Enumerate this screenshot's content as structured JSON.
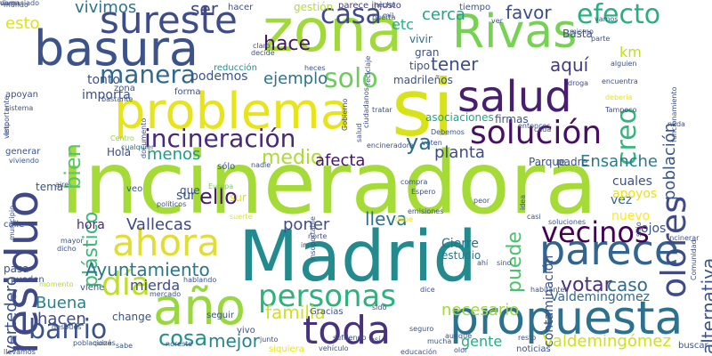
{
  "words": [
    {
      "text": "incineradora",
      "color": "#a5db36"
    },
    {
      "text": "Madrid",
      "color": "#238a8d"
    },
    {
      "text": "si",
      "color": "#d7e219"
    },
    {
      "text": "zona",
      "color": "#a0da39"
    },
    {
      "text": "propuesta",
      "color": "#2c718e"
    },
    {
      "text": "residuo",
      "color": "#3f4889"
    },
    {
      "text": "problema",
      "color": "#e7e419"
    },
    {
      "text": "salud",
      "color": "#481f70"
    },
    {
      "text": "basura",
      "color": "#3b528b"
    },
    {
      "text": "Rivas",
      "color": "#77d153"
    },
    {
      "text": "año",
      "color": "#98d83e"
    },
    {
      "text": "parece",
      "color": "#32648e"
    },
    {
      "text": "toda",
      "color": "#46327e"
    },
    {
      "text": "olores",
      "color": "#3e4a89"
    },
    {
      "text": "ahora",
      "color": "#e1dd37"
    },
    {
      "text": "sureste",
      "color": "#3e4c8a"
    },
    {
      "text": "solución",
      "color": "#471063"
    },
    {
      "text": "día",
      "color": "#bddf26"
    },
    {
      "text": "personas",
      "color": "#2db27d"
    },
    {
      "text": "vecinos",
      "color": "#440154"
    },
    {
      "text": "barrio",
      "color": "#3b528b"
    },
    {
      "text": "incineración",
      "color": "#482878"
    },
    {
      "text": "efecto",
      "color": "#29af7f"
    },
    {
      "text": "casa",
      "color": "#3e4989"
    },
    {
      "text": "manera",
      "color": "#31688e"
    },
    {
      "text": "solo",
      "color": "#6ccd5a"
    },
    {
      "text": "creo",
      "color": "#31b57b"
    },
    {
      "text": "plástico",
      "color": "#3aba76"
    },
    {
      "text": "bien",
      "color": "#56c667"
    },
    {
      "text": "Ayuntamiento",
      "color": "#2a768e"
    },
    {
      "text": "ya",
      "color": "#2d708e"
    },
    {
      "text": "medio",
      "color": "#addc30"
    },
    {
      "text": "cosa",
      "color": "#21918c"
    },
    {
      "text": "puede",
      "color": "#4ac16d"
    },
    {
      "text": "Valdemingómez",
      "color": "#cde11d"
    },
    {
      "text": "tener",
      "color": "#3d4e8a"
    },
    {
      "text": "planta",
      "color": "#3e4a89"
    },
    {
      "text": "Ensanche",
      "color": "#297a8e"
    },
    {
      "text": "votar",
      "color": "#472f7d"
    },
    {
      "text": "caso",
      "color": "#2e6e8e"
    },
    {
      "text": "alternativa",
      "color": "#3b528b"
    },
    {
      "text": "Vallecas",
      "color": "#3f4889"
    },
    {
      "text": "poner",
      "color": "#3e4c8a"
    },
    {
      "text": "lleva",
      "color": "#2c728e"
    },
    {
      "text": "necesario",
      "color": "#9fda3a"
    },
    {
      "text": "mejor",
      "color": "#25848e"
    },
    {
      "text": "familia",
      "color": "#d0e11c"
    },
    {
      "text": "hacen",
      "color": "#3e4c8a"
    },
    {
      "text": "Buena",
      "color": "#26828e"
    },
    {
      "text": "ello",
      "color": "#481b6d"
    },
    {
      "text": "afecta",
      "color": "#471365"
    },
    {
      "text": "hace",
      "color": "#481467"
    },
    {
      "text": "menos",
      "color": "#1f9a8a"
    },
    {
      "text": "aquí",
      "color": "#443a83"
    },
    {
      "text": "ejemplo",
      "color": "#2c738e"
    },
    {
      "text": "favor",
      "color": "#3e4c8a"
    },
    {
      "text": "km",
      "color": "#bddf26"
    },
    {
      "text": "cerca",
      "color": "#20a386"
    },
    {
      "text": "ser",
      "color": "#3f4788"
    },
    {
      "text": "vivimos",
      "color": "#2a768e"
    },
    {
      "text": "esto",
      "color": "#dde318"
    },
    {
      "text": "etc",
      "color": "#2ab07f"
    },
    {
      "text": "población",
      "color": "#3a548c"
    },
    {
      "text": "vertedero",
      "color": "#3b528b"
    },
    {
      "text": "gente",
      "color": "#27ad81"
    },
    {
      "text": "mierda",
      "color": "#3e4c8a"
    },
    {
      "text": "Valdemingomez",
      "color": "#31688e"
    },
    {
      "text": "Cierre",
      "color": "#2d708e"
    },
    {
      "text": "estudio",
      "color": "#2a768e"
    },
    {
      "text": "hora",
      "color": "#482878"
    },
    {
      "text": "sur",
      "color": "#39568c"
    },
    {
      "text": "Hola",
      "color": "#3e4c8a"
    },
    {
      "text": "tonto",
      "color": "#3b528b"
    },
    {
      "text": "importa",
      "color": "#3b528b"
    },
    {
      "text": "podemos",
      "color": "#3b528b"
    },
    {
      "text": "reducción",
      "color": "#21918c"
    },
    {
      "text": "contaminación",
      "color": "#3b528b"
    },
    {
      "text": "vez",
      "color": "#31688e"
    },
    {
      "text": "nuevo",
      "color": "#fde725"
    },
    {
      "text": "cuales",
      "color": "#3b528b"
    },
    {
      "text": "apoyos",
      "color": "#e5e419"
    },
    {
      "text": "ojos",
      "color": "#3b528b"
    },
    {
      "text": "gestión",
      "color": "#b5de2b"
    },
    {
      "text": "parece injusto",
      "color": "#443983"
    },
    {
      "text": "tiempo",
      "color": "#3b528b"
    },
    {
      "text": "Basta",
      "color": "#3b528b"
    },
    {
      "text": "vivir",
      "color": "#2c728e"
    },
    {
      "text": "gran",
      "color": "#3b528b"
    },
    {
      "text": "tipo",
      "color": "#3b528b"
    },
    {
      "text": "madrileños",
      "color": "#3b528b"
    },
    {
      "text": "asociaciones",
      "color": "#22a884"
    },
    {
      "text": "firmas",
      "color": "#3b528b"
    },
    {
      "text": "Parque",
      "color": "#3b528b"
    },
    {
      "text": "padre",
      "color": "#3b528b"
    },
    {
      "text": "hacer",
      "color": "#3b528b"
    },
    {
      "text": "mundo",
      "color": "#3b528b"
    },
    {
      "text": "claro",
      "color": "#3b528b"
    },
    {
      "text": "decide",
      "color": "#3b528b"
    },
    {
      "text": "heces",
      "color": "#3b528b"
    },
    {
      "text": "apoyan",
      "color": "#3b528b"
    },
    {
      "text": "sistema",
      "color": "#3b528b"
    },
    {
      "text": "generar",
      "color": "#3b528b"
    },
    {
      "text": "viviendo",
      "color": "#3b528b"
    },
    {
      "text": "tema",
      "color": "#3b528b"
    },
    {
      "text": "aire",
      "color": "#3b528b"
    },
    {
      "text": "veo",
      "color": "#3b528b"
    },
    {
      "text": "que",
      "color": "#3b528b"
    },
    {
      "text": "políticos",
      "color": "#3b528b"
    },
    {
      "text": "Europa",
      "color": "#7ad151"
    },
    {
      "text": "forma",
      "color": "#3b528b"
    },
    {
      "text": "zona",
      "color": "#3b528b"
    },
    {
      "text": "sólo",
      "color": "#3b528b"
    },
    {
      "text": "nadie",
      "color": "#3b528b"
    },
    {
      "text": "sur",
      "color": "#e3e418"
    },
    {
      "text": "cualquier",
      "color": "#2a768e"
    },
    {
      "text": "Centro",
      "color": "#8fd744"
    },
    {
      "text": "bastante",
      "color": "#3b528b"
    },
    {
      "text": "documento",
      "color": "#3b528b"
    },
    {
      "text": "calle",
      "color": "#3b528b"
    },
    {
      "text": "mayor",
      "color": "#3b528b"
    },
    {
      "text": "dicho",
      "color": "#3b528b"
    },
    {
      "text": "pasa",
      "color": "#3b528b"
    },
    {
      "text": "pueden",
      "color": "#3b528b"
    },
    {
      "text": "momento",
      "color": "#b5de2b"
    },
    {
      "text": "viene",
      "color": "#3b528b"
    },
    {
      "text": "mercado",
      "color": "#3b528b"
    },
    {
      "text": "hablando",
      "color": "#3b528b"
    },
    {
      "text": "change",
      "color": "#3b528b"
    },
    {
      "text": "Gracias",
      "color": "#3b528b"
    },
    {
      "text": "seguir",
      "color": "#3b528b"
    },
    {
      "text": "sido",
      "color": "#3b528b"
    },
    {
      "text": "vivo",
      "color": "#3b528b"
    },
    {
      "text": "junto",
      "color": "#3b528b"
    },
    {
      "text": "siquiera",
      "color": "#e5e419"
    },
    {
      "text": "olor",
      "color": "#3b528b"
    },
    {
      "text": "noticias",
      "color": "#3b528b"
    },
    {
      "text": "resto",
      "color": "#3b528b"
    },
    {
      "text": "buscar",
      "color": "#3b528b"
    },
    {
      "text": "seguro",
      "color": "#3b528b"
    },
    {
      "text": "mucha",
      "color": "#3b528b"
    },
    {
      "text": "aunque",
      "color": "#3b528b"
    },
    {
      "text": "dice",
      "color": "#3b528b"
    },
    {
      "text": "habitantes",
      "color": "#3b528b"
    },
    {
      "text": "sino",
      "color": "#3b528b"
    },
    {
      "text": "ahí",
      "color": "#3b528b"
    },
    {
      "text": "ir",
      "color": "#3b528b"
    },
    {
      "text": "norte",
      "color": "#3b528b"
    },
    {
      "text": "suerte",
      "color": "#e5e419"
    },
    {
      "text": "debe",
      "color": "#e5e419"
    },
    {
      "text": "emisiones",
      "color": "#3b528b"
    },
    {
      "text": "Espero",
      "color": "#3b528b"
    },
    {
      "text": "compra",
      "color": "#3b528b"
    },
    {
      "text": "peor",
      "color": "#3b528b"
    },
    {
      "text": "casi",
      "color": "#3b528b"
    },
    {
      "text": "soluciones",
      "color": "#3b528b"
    },
    {
      "text": "incinerar",
      "color": "#3b528b"
    },
    {
      "text": "mismo",
      "color": "#3b528b"
    },
    {
      "text": "Tampoco",
      "color": "#3b528b"
    },
    {
      "text": "debería",
      "color": "#e5e419"
    },
    {
      "text": "encuentra",
      "color": "#3b528b"
    },
    {
      "text": "droga",
      "color": "#3b528b"
    },
    {
      "text": "alguien",
      "color": "#3b528b"
    },
    {
      "text": "parte",
      "color": "#3b528b"
    },
    {
      "text": "Debemos",
      "color": "#3b528b"
    },
    {
      "text": "voten",
      "color": "#3b528b"
    },
    {
      "text": "entonces",
      "color": "#3b528b"
    },
    {
      "text": "cada",
      "color": "#3b528b"
    },
    {
      "text": "tratar",
      "color": "#3b528b"
    },
    {
      "text": "puerta",
      "color": "#3b528b"
    },
    {
      "text": "hecho",
      "color": "#3b528b"
    },
    {
      "text": "mil",
      "color": "#3b528b"
    },
    {
      "text": "ver",
      "color": "#3b528b"
    },
    {
      "text": "vamos",
      "color": "#3b528b"
    },
    {
      "text": "Gobierno",
      "color": "#3b528b"
    },
    {
      "text": "salud",
      "color": "#3b528b"
    },
    {
      "text": "ciudadanos",
      "color": "#3b528b"
    },
    {
      "text": "reciclaje",
      "color": "#3b528b"
    },
    {
      "text": "visto",
      "color": "#3b528b"
    },
    {
      "text": "importante",
      "color": "#3b528b"
    },
    {
      "text": "poblaciones",
      "color": "#3b528b"
    },
    {
      "text": "después",
      "color": "#3b528b"
    },
    {
      "text": "llevamos",
      "color": "#3b528b"
    },
    {
      "text": "quizá",
      "color": "#3b528b"
    },
    {
      "text": "sabe",
      "color": "#3b528b"
    },
    {
      "text": "noreste",
      "color": "#3b528b"
    },
    {
      "text": "vehículo",
      "color": "#3b528b"
    },
    {
      "text": "sufriendo",
      "color": "#3b528b"
    },
    {
      "text": "así",
      "color": "#3b528b"
    },
    {
      "text": "educación",
      "color": "#3b528b"
    },
    {
      "text": "nada",
      "color": "#3b528b"
    },
    {
      "text": "Comunidad",
      "color": "#3b528b"
    },
    {
      "text": "sitio",
      "color": "#3b528b"
    },
    {
      "text": "funcionamiento",
      "color": "#3b528b"
    },
    {
      "text": "municipio",
      "color": "#3b528b"
    },
    {
      "text": "insoportable",
      "color": "#3b528b"
    },
    {
      "text": "idea",
      "color": "#3b528b"
    },
    {
      "text": "encineradora",
      "color": "#3b528b"
    },
    {
      "text": "demasiado",
      "color": "#3b528b"
    },
    {
      "text": "viven",
      "color": "#3b528b"
    }
  ]
}
